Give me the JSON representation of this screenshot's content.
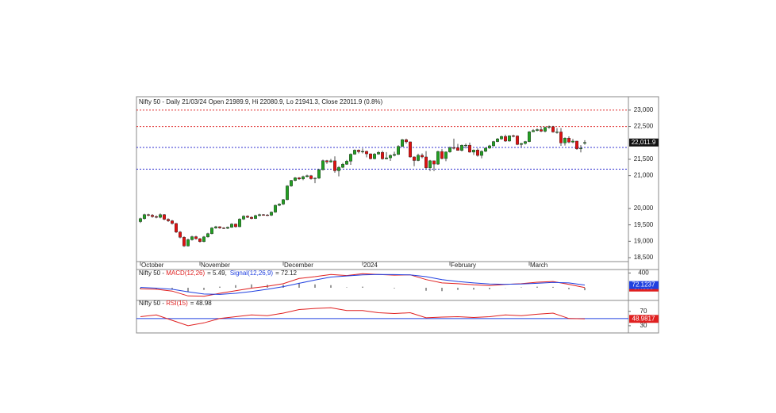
{
  "chart_data": [
    {
      "type": "candlestick",
      "title": "Nifty 50 - Daily 21/03/24 Open 21989.9, Hi 22080.9, Lo 21941.3, Close 22011.9 (0.8%)",
      "up_color": "#22a022",
      "down_color": "#e01010",
      "xlim": [
        -1,
        123
      ],
      "ylim": [
        18380,
        23360
      ],
      "yticks": [
        {
          "value": 23000,
          "label": "23,000"
        },
        {
          "value": 22500,
          "label": "22,500"
        },
        {
          "value": 21500,
          "label": "21,500"
        },
        {
          "value": 21000,
          "label": "21,000"
        },
        {
          "value": 20000,
          "label": "20,000"
        },
        {
          "value": 19500,
          "label": "19,500"
        },
        {
          "value": 19000,
          "label": "19,000"
        },
        {
          "value": 18500,
          "label": "18,500"
        }
      ],
      "x_labels": [
        {
          "value": 0,
          "label": "October"
        },
        {
          "value": 15,
          "label": "November"
        },
        {
          "value": 36,
          "label": "December"
        },
        {
          "value": 56,
          "label": "2024"
        },
        {
          "value": 78,
          "label": "February"
        },
        {
          "value": 98,
          "label": "March"
        }
      ],
      "hlines": [
        {
          "value": 23000,
          "color": "#e03030"
        },
        {
          "value": 22500,
          "color": "#e03030"
        },
        {
          "value": 21860,
          "color": "#3030d0"
        },
        {
          "value": 21200,
          "color": "#3030d0"
        }
      ],
      "last_price": {
        "value": 22011.9,
        "label": "22,011.9"
      },
      "candles": [
        [
          19600,
          19720,
          19560,
          19690
        ],
        [
          19690,
          19840,
          19660,
          19811
        ],
        [
          19811,
          19840,
          19760,
          19794
        ],
        [
          19794,
          19830,
          19720,
          19751
        ],
        [
          19751,
          19790,
          19700,
          19731
        ],
        [
          19731,
          19850,
          19700,
          19811
        ],
        [
          19811,
          19830,
          19640,
          19671
        ],
        [
          19671,
          19700,
          19590,
          19624
        ],
        [
          19624,
          19650,
          19510,
          19542
        ],
        [
          19542,
          19560,
          19250,
          19281
        ],
        [
          19281,
          19310,
          19090,
          19122
        ],
        [
          19122,
          19150,
          18830,
          18857
        ],
        [
          18857,
          19080,
          18840,
          19047
        ],
        [
          19047,
          19170,
          19020,
          19140
        ],
        [
          19140,
          19170,
          19050,
          19079
        ],
        [
          19079,
          19100,
          18960,
          18989
        ],
        [
          18989,
          19160,
          18970,
          19133
        ],
        [
          19133,
          19260,
          19110,
          19231
        ],
        [
          19231,
          19430,
          19210,
          19406
        ],
        [
          19406,
          19470,
          19380,
          19443
        ],
        [
          19443,
          19460,
          19380,
          19407
        ],
        [
          19407,
          19430,
          19370,
          19396
        ],
        [
          19396,
          19450,
          19370,
          19425
        ],
        [
          19425,
          19550,
          19410,
          19525
        ],
        [
          19525,
          19540,
          19420,
          19443
        ],
        [
          19443,
          19700,
          19430,
          19675
        ],
        [
          19675,
          19790,
          19650,
          19765
        ],
        [
          19765,
          19790,
          19710,
          19732
        ],
        [
          19732,
          19760,
          19670,
          19694
        ],
        [
          19694,
          19810,
          19680,
          19783
        ],
        [
          19783,
          19840,
          19760,
          19811
        ],
        [
          19811,
          19830,
          19780,
          19802
        ],
        [
          19802,
          19830,
          19770,
          19794
        ],
        [
          19794,
          19910,
          19770,
          19889
        ],
        [
          19889,
          20120,
          19870,
          20096
        ],
        [
          20096,
          20160,
          20070,
          20133
        ],
        [
          20133,
          20290,
          20110,
          20268
        ],
        [
          20268,
          20710,
          20250,
          20687
        ],
        [
          20687,
          20870,
          20660,
          20855
        ],
        [
          20855,
          20960,
          20830,
          20937
        ],
        [
          20937,
          20960,
          20870,
          20901
        ],
        [
          20901,
          21000,
          20860,
          20969
        ],
        [
          20969,
          21030,
          20950,
          20997
        ],
        [
          20997,
          21020,
          20880,
          20906
        ],
        [
          20906,
          20950,
          20770,
          20926
        ],
        [
          20926,
          21210,
          20900,
          21183
        ],
        [
          21183,
          21490,
          21160,
          21456
        ],
        [
          21456,
          21480,
          21360,
          21419
        ],
        [
          21419,
          21510,
          21400,
          21453
        ],
        [
          21453,
          21590,
          21090,
          21150
        ],
        [
          21150,
          21290,
          20980,
          21255
        ],
        [
          21255,
          21390,
          21230,
          21349
        ],
        [
          21349,
          21480,
          21330,
          21442
        ],
        [
          21442,
          21680,
          21330,
          21655
        ],
        [
          21655,
          21800,
          21640,
          21778
        ],
        [
          21778,
          21800,
          21680,
          21731
        ],
        [
          21731,
          21830,
          21680,
          21742
        ],
        [
          21742,
          21760,
          21560,
          21666
        ],
        [
          21666,
          21680,
          21500,
          21518
        ],
        [
          21518,
          21690,
          21500,
          21658
        ],
        [
          21658,
          21750,
          21640,
          21711
        ],
        [
          21711,
          21760,
          21490,
          21513
        ],
        [
          21513,
          21720,
          21500,
          21545
        ],
        [
          21545,
          21650,
          21450,
          21619
        ],
        [
          21619,
          21730,
          21590,
          21647
        ],
        [
          21647,
          21930,
          21630,
          21894
        ],
        [
          21894,
          22120,
          21880,
          22097
        ],
        [
          22097,
          22130,
          21980,
          22032
        ],
        [
          22032,
          22040,
          21550,
          21572
        ],
        [
          21572,
          21590,
          21290,
          21462
        ],
        [
          21462,
          21670,
          21440,
          21622
        ],
        [
          21622,
          21680,
          21530,
          21572
        ],
        [
          21572,
          21750,
          21200,
          21239
        ],
        [
          21239,
          21480,
          21140,
          21454
        ],
        [
          21454,
          21460,
          21140,
          21352
        ],
        [
          21352,
          21760,
          21330,
          21738
        ],
        [
          21738,
          21810,
          21500,
          21522
        ],
        [
          21522,
          21740,
          21440,
          21725
        ],
        [
          21725,
          21890,
          21700,
          21854
        ],
        [
          21854,
          22130,
          21800,
          21853
        ],
        [
          21853,
          21970,
          21760,
          21771
        ],
        [
          21771,
          21950,
          21740,
          21929
        ],
        [
          21929,
          21980,
          21830,
          21930
        ],
        [
          21930,
          22010,
          21700,
          21718
        ],
        [
          21718,
          21800,
          21630,
          21782
        ],
        [
          21782,
          21830,
          21580,
          21617
        ],
        [
          21617,
          21770,
          21530,
          21743
        ],
        [
          21743,
          21860,
          21720,
          21840
        ],
        [
          21840,
          21940,
          21820,
          21910
        ],
        [
          21910,
          22060,
          21890,
          22040
        ],
        [
          22040,
          22150,
          22020,
          22122
        ],
        [
          22122,
          22220,
          22100,
          22197
        ],
        [
          22197,
          22250,
          22030,
          22055
        ],
        [
          22055,
          22230,
          22040,
          22218
        ],
        [
          22218,
          22250,
          22170,
          22212
        ],
        [
          22212,
          22230,
          21930,
          21951
        ],
        [
          21951,
          22000,
          21870,
          21982
        ],
        [
          21982,
          22060,
          21950,
          22040
        ],
        [
          22040,
          22360,
          22020,
          22338
        ],
        [
          22338,
          22420,
          22330,
          22378
        ],
        [
          22378,
          22440,
          22350,
          22405
        ],
        [
          22405,
          22500,
          22330,
          22356
        ],
        [
          22356,
          22500,
          22320,
          22474
        ],
        [
          22474,
          22530,
          22430,
          22493
        ],
        [
          22493,
          22520,
          22310,
          22333
        ],
        [
          22333,
          22450,
          22280,
          22335
        ],
        [
          22335,
          22450,
          21910,
          21998
        ],
        [
          21998,
          22170,
          21920,
          22146
        ],
        [
          22146,
          22200,
          21990,
          22023
        ],
        [
          22023,
          22120,
          21990,
          22055
        ],
        [
          22055,
          22060,
          21790,
          21817
        ],
        [
          21817,
          21930,
          21710,
          21839
        ],
        [
          21989.9,
          22080.9,
          21941.3,
          22011.9
        ]
      ]
    },
    {
      "type": "line",
      "prefix": "Nifty 50 - ",
      "xlim": [
        -1,
        123
      ],
      "ylim": [
        -300,
        450
      ],
      "yticks": [
        400
      ],
      "x": [
        0,
        4,
        8,
        12,
        16,
        20,
        24,
        28,
        32,
        36,
        40,
        44,
        48,
        52,
        56,
        60,
        64,
        68,
        72,
        76,
        80,
        84,
        88,
        92,
        96,
        100,
        104,
        108,
        112
      ],
      "histogram": {
        "color": "#333333",
        "values": [
          -40,
          -30,
          -50,
          -110,
          -60,
          30,
          70,
          90,
          80,
          80,
          130,
          90,
          70,
          10,
          30,
          0,
          -15,
          0,
          -80,
          -90,
          -60,
          -50,
          -40,
          -5,
          10,
          30,
          25,
          -40,
          -67
        ]
      },
      "series": [
        {
          "name": "MACD(12,26)",
          "summary": "= 5.49,",
          "color": "#e02020",
          "last_label": {
            "value": 5.4893,
            "label": "5.4893"
          },
          "values": [
            -30,
            -40,
            -90,
            -220,
            -230,
            -150,
            -80,
            -10,
            40,
            110,
            250,
            300,
            360,
            330,
            380,
            360,
            340,
            350,
            220,
            130,
            110,
            80,
            60,
            90,
            110,
            150,
            170,
            90,
            5.49
          ]
        },
        {
          "name": "Signal(12,26,9)",
          "summary": "= 72.12",
          "color": "#2040e0",
          "last_label": {
            "value": 72.1237,
            "label": "72.1237"
          },
          "values": [
            10,
            -10,
            -40,
            -110,
            -170,
            -180,
            -150,
            -100,
            -40,
            30,
            120,
            210,
            290,
            320,
            350,
            360,
            355,
            350,
            300,
            220,
            170,
            130,
            100,
            95,
            100,
            120,
            145,
            130,
            72.12
          ]
        }
      ]
    },
    {
      "type": "line",
      "prefix": "Nifty 50 - ",
      "xlim": [
        -1,
        123
      ],
      "ylim": [
        10,
        98
      ],
      "yticks": [
        70,
        30
      ],
      "hline": {
        "value": 50,
        "color": "#2040e0"
      },
      "x": [
        0,
        4,
        8,
        12,
        16,
        20,
        24,
        28,
        32,
        36,
        40,
        44,
        48,
        52,
        56,
        60,
        64,
        68,
        72,
        76,
        80,
        84,
        88,
        92,
        96,
        100,
        104,
        108,
        112
      ],
      "series": [
        {
          "name": "RSI(15)",
          "summary": "= 48.98",
          "color": "#e02020",
          "last_label": {
            "value": 48.9817,
            "label": "48.9817"
          },
          "values": [
            55,
            60,
            45,
            30,
            38,
            50,
            55,
            60,
            58,
            65,
            75,
            78,
            80,
            72,
            72,
            66,
            64,
            66,
            52,
            54,
            55,
            53,
            55,
            60,
            58,
            62,
            65,
            50,
            48.98
          ]
        }
      ]
    }
  ]
}
